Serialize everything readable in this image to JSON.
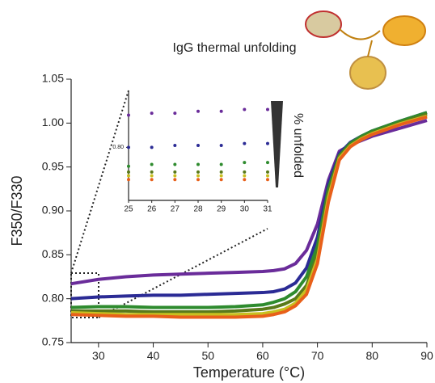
{
  "chart_data": [
    {
      "type": "line",
      "title": "IgG thermal unfolding",
      "x_label": "Temperature (°C)",
      "y_label": "F350/F330",
      "xlim": [
        25,
        90
      ],
      "xticks": [
        30,
        40,
        50,
        60,
        70,
        80,
        90
      ],
      "ylim": [
        0.75,
        1.05
      ],
      "yticks": [
        0.75,
        {
          "value": 0.8,
          "label": "0.80"
        },
        0.85,
        {
          "value": 0.9,
          "label": "0.90"
        },
        0.95,
        {
          "value": 1.0,
          "label": "1.00"
        },
        1.05
      ],
      "x": [
        25,
        30,
        35,
        40,
        45,
        50,
        55,
        60,
        62,
        64,
        66,
        68,
        70,
        72,
        74,
        76,
        78,
        80,
        85,
        90
      ],
      "series": [
        {
          "color": "#6a2c9a",
          "values": [
            0.817,
            0.822,
            0.825,
            0.827,
            0.828,
            0.829,
            0.83,
            0.831,
            0.832,
            0.834,
            0.84,
            0.855,
            0.885,
            0.935,
            0.968,
            0.975,
            0.98,
            0.985,
            0.994,
            1.003
          ]
        },
        {
          "color": "#2b2b95",
          "values": [
            0.8,
            0.802,
            0.803,
            0.804,
            0.804,
            0.805,
            0.806,
            0.807,
            0.808,
            0.811,
            0.818,
            0.835,
            0.87,
            0.93,
            0.965,
            0.978,
            0.985,
            0.991,
            1.002,
            1.012
          ]
        },
        {
          "color": "#2e8b2e",
          "values": [
            0.79,
            0.791,
            0.791,
            0.79,
            0.79,
            0.79,
            0.791,
            0.793,
            0.796,
            0.8,
            0.808,
            0.825,
            0.86,
            0.925,
            0.963,
            0.977,
            0.985,
            0.991,
            1.002,
            1.012
          ]
        },
        {
          "color": "#5a7a1a",
          "values": [
            0.786,
            0.786,
            0.786,
            0.785,
            0.785,
            0.785,
            0.786,
            0.788,
            0.79,
            0.794,
            0.8,
            0.815,
            0.85,
            0.92,
            0.962,
            0.975,
            0.983,
            0.989,
            1.0,
            1.01
          ]
        },
        {
          "color": "#c8c020",
          "values": [
            0.784,
            0.783,
            0.782,
            0.782,
            0.782,
            0.782,
            0.782,
            0.783,
            0.785,
            0.788,
            0.795,
            0.81,
            0.845,
            0.915,
            0.96,
            0.974,
            0.982,
            0.988,
            0.999,
            1.008
          ]
        },
        {
          "color": "#e8601a",
          "values": [
            0.782,
            0.781,
            0.78,
            0.78,
            0.779,
            0.779,
            0.779,
            0.78,
            0.782,
            0.785,
            0.792,
            0.805,
            0.84,
            0.91,
            0.958,
            0.973,
            0.981,
            0.987,
            0.998,
            1.007
          ]
        }
      ]
    },
    {
      "type": "scatter",
      "annotation": "% unfolded",
      "xlim": [
        25,
        31
      ],
      "xticks": [
        25,
        26,
        27,
        28,
        29,
        30,
        31
      ],
      "ylim": [
        0.772,
        0.83
      ],
      "yticks": [
        {
          "value": 0.8,
          "label": "0.80"
        }
      ],
      "x": [
        25,
        26,
        27,
        28,
        29,
        30,
        31
      ],
      "series": [
        {
          "color": "#6a2c9a",
          "values": [
            0.817,
            0.818,
            0.818,
            0.819,
            0.819,
            0.82,
            0.82
          ]
        },
        {
          "color": "#2b2b95",
          "values": [
            0.8,
            0.8,
            0.801,
            0.801,
            0.801,
            0.802,
            0.802
          ]
        },
        {
          "color": "#2e8b2e",
          "values": [
            0.79,
            0.791,
            0.791,
            0.791,
            0.791,
            0.792,
            0.792
          ]
        },
        {
          "color": "#5a7a1a",
          "values": [
            0.787,
            0.787,
            0.787,
            0.787,
            0.787,
            0.787,
            0.787
          ]
        },
        {
          "color": "#c8c020",
          "values": [
            0.785,
            0.785,
            0.785,
            0.785,
            0.785,
            0.785,
            0.785
          ]
        },
        {
          "color": "#e8601a",
          "values": [
            0.783,
            0.783,
            0.783,
            0.783,
            0.783,
            0.783,
            0.783
          ]
        }
      ]
    }
  ]
}
